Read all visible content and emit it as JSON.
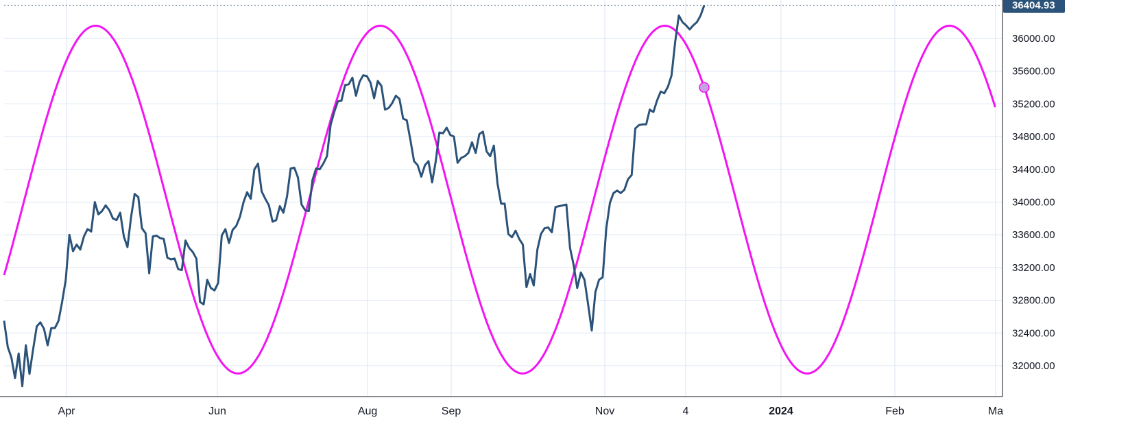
{
  "chart_data": {
    "type": "line",
    "ylim": [
      31750,
      36500
    ],
    "grid": true,
    "y_ticks": [
      "32000.00",
      "32400.00",
      "32800.00",
      "33200.00",
      "33600.00",
      "34000.00",
      "34400.00",
      "34800.00",
      "35200.00",
      "35600.00",
      "36000.00"
    ],
    "x_ticks": [
      {
        "label": "Apr",
        "bold": false
      },
      {
        "label": "Jun",
        "bold": false
      },
      {
        "label": "Aug",
        "bold": false
      },
      {
        "label": "Sep",
        "bold": false
      },
      {
        "label": "Nov",
        "bold": false
      },
      {
        "label": "4",
        "bold": false
      },
      {
        "label": "2024",
        "bold": true
      },
      {
        "label": "Feb",
        "bold": false
      },
      {
        "label": "Ma",
        "bold": false
      }
    ],
    "last_value": "36404.93",
    "colors": {
      "price": "#2b5278",
      "cycle": "#f215f2",
      "grid": "#dbe6f2",
      "label_bg": "#2b5278",
      "marker_fill": "#c9a0e6"
    },
    "series": [
      {
        "kind": "price",
        "values": [
          32550,
          32230,
          32100,
          31850,
          32150,
          31750,
          32250,
          31900,
          32200,
          32480,
          32530,
          32450,
          32250,
          32460,
          32460,
          32550,
          32780,
          33050,
          33600,
          33400,
          33480,
          33420,
          33580,
          33670,
          33640,
          34000,
          33850,
          33890,
          33960,
          33900,
          33800,
          33780,
          33870,
          33580,
          33450,
          33820,
          34100,
          34060,
          33680,
          33620,
          33130,
          33580,
          33590,
          33560,
          33550,
          33320,
          33300,
          33310,
          33180,
          33170,
          33530,
          33440,
          33390,
          33310,
          32780,
          32750,
          33050,
          32950,
          32920,
          33010,
          33590,
          33670,
          33500,
          33660,
          33710,
          33820,
          34000,
          34120,
          34040,
          34400,
          34470,
          34130,
          34040,
          33960,
          33760,
          33780,
          33950,
          33870,
          34070,
          34410,
          34420,
          34300,
          33970,
          33900,
          33890,
          34270,
          34410,
          34400,
          34470,
          34560,
          34940,
          35100,
          35230,
          35240,
          35430,
          35440,
          35520,
          35300,
          35470,
          35550,
          35540,
          35460,
          35270,
          35480,
          35420,
          35130,
          35150,
          35210,
          35300,
          35260,
          35020,
          35000,
          34760,
          34500,
          34450,
          34310,
          34450,
          34500,
          34240,
          34500,
          34850,
          34840,
          34910,
          34820,
          34800,
          34480,
          34540,
          34560,
          34600,
          34730,
          34600,
          34830,
          34860,
          34620,
          34560,
          34690,
          34230,
          33980,
          33980,
          33610,
          33570,
          33650,
          33550,
          33480,
          32960,
          33120,
          32980,
          33420,
          33610,
          33680,
          33690,
          33630,
          33940,
          33950,
          33960,
          33970,
          33440,
          33230,
          32950,
          33140,
          33050,
          32750,
          32430,
          32900,
          33050,
          33080,
          33680,
          33990,
          34110,
          34140,
          34110,
          34150,
          34280,
          34330,
          34900,
          34940,
          34950,
          34950,
          35130,
          35100,
          35240,
          35350,
          35330,
          35410,
          35550,
          35960,
          36280,
          36200,
          36160,
          36110,
          36160,
          36200,
          36280,
          36405
        ]
      },
      {
        "kind": "cycle",
        "center": 34030,
        "amplitude": 2125,
        "period_days": 112,
        "peak_day": 36,
        "total_days": 390
      }
    ]
  }
}
